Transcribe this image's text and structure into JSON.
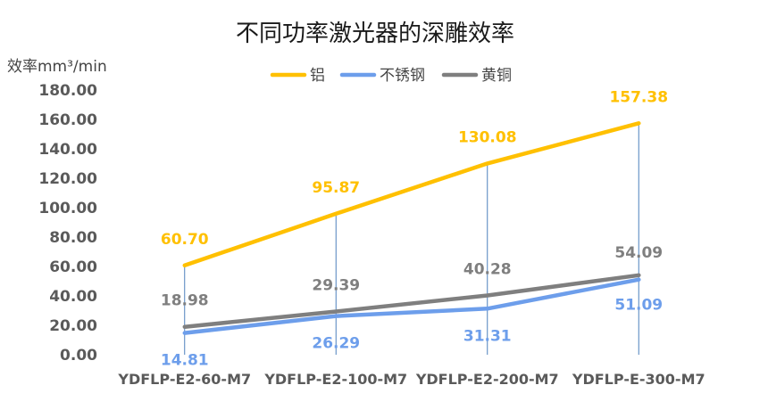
{
  "chart_data": {
    "type": "line",
    "title": "不同功率激光器的深雕效率",
    "ylabel": "效率mm³/min",
    "xlabel": "",
    "categories": [
      "YDFLP-E2-60-M7",
      "YDFLP-E2-100-M7",
      "YDFLP-E2-200-M7",
      "YDFLP-E-300-M7"
    ],
    "ylim": [
      0,
      180
    ],
    "yticks": [
      "0.00",
      "20.00",
      "40.00",
      "60.00",
      "80.00",
      "100.00",
      "120.00",
      "140.00",
      "160.00",
      "180.00"
    ],
    "grid": false,
    "legend_position": "top",
    "series": [
      {
        "name": "铝",
        "color": "#FFC000",
        "values": [
          60.7,
          95.87,
          130.08,
          157.38
        ],
        "labels": [
          "60.70",
          "95.87",
          "130.08",
          "157.38"
        ]
      },
      {
        "name": "不锈钢",
        "color": "#6D9EEB",
        "values": [
          14.81,
          26.29,
          31.31,
          51.09
        ],
        "labels": [
          "14.81",
          "26.29",
          "31.31",
          "51.09"
        ]
      },
      {
        "name": "黄铜",
        "color": "#7F7F7F",
        "values": [
          18.98,
          29.39,
          40.28,
          54.09
        ],
        "labels": [
          "18.98",
          "29.39",
          "40.28",
          "54.09"
        ]
      }
    ]
  }
}
